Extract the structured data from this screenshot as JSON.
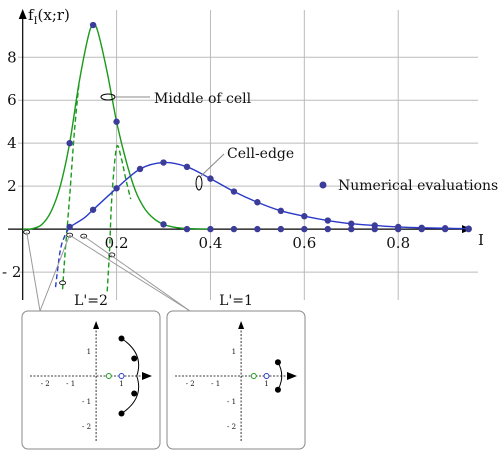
{
  "chart_data": {
    "type": "line",
    "ylabel": "f_I(x;r)",
    "xlabel": "I",
    "xlim": [
      -0.01,
      0.97
    ],
    "ylim": [
      -3.3,
      10.2
    ],
    "x_ticks": [
      0.2,
      0.4,
      0.6,
      0.8
    ],
    "x_tick_labels": [
      "0.2",
      "0.4",
      "0.6",
      "0.8"
    ],
    "y_ticks": [
      -2,
      2,
      4,
      6,
      8
    ],
    "y_tick_labels": [
      "- 2",
      "2",
      "4",
      "6",
      "8"
    ],
    "grid": true,
    "annotations": {
      "middle": "Middle of cell",
      "edge": "Cell-edge",
      "legend_numerical": "Numerical evaluations"
    },
    "series": [
      {
        "color": "#1a9a1a",
        "style": "solid",
        "x": [
          0.0,
          0.02,
          0.04,
          0.06,
          0.08,
          0.1,
          0.12,
          0.14,
          0.15,
          0.16,
          0.18,
          0.2,
          0.22,
          0.24,
          0.26,
          0.28,
          0.3,
          0.32,
          0.34,
          0.36,
          0.4
        ],
        "y": [
          0.0,
          0.02,
          0.2,
          0.8,
          2.0,
          4.0,
          6.8,
          9.0,
          9.5,
          9.2,
          7.3,
          5.0,
          3.2,
          1.8,
          0.95,
          0.48,
          0.22,
          0.1,
          0.04,
          0.02,
          0.0
        ]
      },
      {
        "color": "#1a9a1a",
        "style": "dashed",
        "x": [
          0.18,
          0.185,
          0.19,
          0.2,
          0.21,
          0.22,
          0.23
        ],
        "y": [
          -2.9,
          -1.0,
          1.5,
          3.8,
          3.3,
          2.3,
          1.4
        ]
      },
      {
        "color": "#1a9a1a",
        "style": "dashed",
        "x": [
          0.085,
          0.09,
          0.1,
          0.11,
          0.12
        ],
        "y": [
          -2.8,
          -1.2,
          1.5,
          4.5,
          6.8
        ]
      },
      {
        "color": "#2a3ac8",
        "style": "solid",
        "x": [
          0.1,
          0.13,
          0.15,
          0.2,
          0.25,
          0.3,
          0.35,
          0.4,
          0.45,
          0.5,
          0.55,
          0.6,
          0.65,
          0.7,
          0.75,
          0.8,
          0.85,
          0.9,
          0.95
        ],
        "y": [
          0.1,
          0.5,
          0.9,
          1.9,
          2.8,
          3.1,
          2.9,
          2.35,
          1.75,
          1.25,
          0.85,
          0.6,
          0.4,
          0.25,
          0.17,
          0.1,
          0.06,
          0.04,
          0.02
        ]
      },
      {
        "color": "#2a3ac8",
        "style": "dashed",
        "x": [
          0.07,
          0.08,
          0.09,
          0.1
        ],
        "y": [
          -2.7,
          -1.0,
          -0.3,
          0.1
        ]
      },
      {
        "name": "Numerical evaluations",
        "type": "scatter",
        "color": "#3c3c9a",
        "x": [
          0.1,
          0.15,
          0.2,
          0.1,
          0.15,
          0.2,
          0.25,
          0.3,
          0.35,
          0.4,
          0.45,
          0.5,
          0.55,
          0.6,
          0.65,
          0.7,
          0.75,
          0.8,
          0.85,
          0.9,
          0.95,
          0.3,
          0.35,
          0.4,
          0.45,
          0.5,
          0.55,
          0.6,
          0.65,
          0.7,
          0.75,
          0.8,
          0.85,
          0.9,
          0.95
        ],
        "y": [
          4.0,
          9.5,
          5.0,
          0.1,
          0.9,
          1.9,
          2.8,
          3.1,
          2.9,
          2.35,
          1.75,
          1.25,
          0.85,
          0.6,
          0.4,
          0.25,
          0.17,
          0.1,
          0.06,
          0.04,
          0.02,
          0.22,
          0.0,
          0.0,
          0.0,
          0.0,
          0.0,
          0.0,
          0.0,
          0.0,
          0.0,
          0.0,
          0.0,
          0.0,
          0.0
        ]
      }
    ]
  },
  "insets": [
    {
      "title": "L'=2",
      "xlim": [
        -2.6,
        2.2
      ],
      "ylim": [
        -2.6,
        2.2
      ],
      "x_tick_labels": [
        "- 2",
        "- 1",
        "1"
      ],
      "y_tick_labels": [
        "1",
        "- 1",
        "- 2"
      ],
      "x_ticks": [
        -2,
        -1,
        1
      ],
      "y_ticks": [
        1,
        -1,
        -2
      ],
      "black_points": [
        [
          1.0,
          1.5
        ],
        [
          1.5,
          0.7
        ],
        [
          1.5,
          -0.7
        ],
        [
          1.0,
          -1.5
        ]
      ],
      "green_point": [
        0.5,
        0
      ],
      "blue_point": [
        1.0,
        0
      ],
      "arc": true
    },
    {
      "title": "L'=1",
      "xlim": [
        -2.6,
        2.2
      ],
      "ylim": [
        -2.6,
        2.2
      ],
      "x_tick_labels": [
        "- 2",
        "- 1",
        "1"
      ],
      "y_tick_labels": [
        "1",
        "- 1",
        "- 2"
      ],
      "x_ticks": [
        -2,
        -1,
        1
      ],
      "y_ticks": [
        1,
        -1,
        -2
      ],
      "black_points": [
        [
          1.45,
          0.55
        ],
        [
          1.45,
          -0.55
        ]
      ],
      "green_point": [
        0.5,
        0
      ],
      "blue_point": [
        1.0,
        0
      ],
      "arc": true
    }
  ]
}
